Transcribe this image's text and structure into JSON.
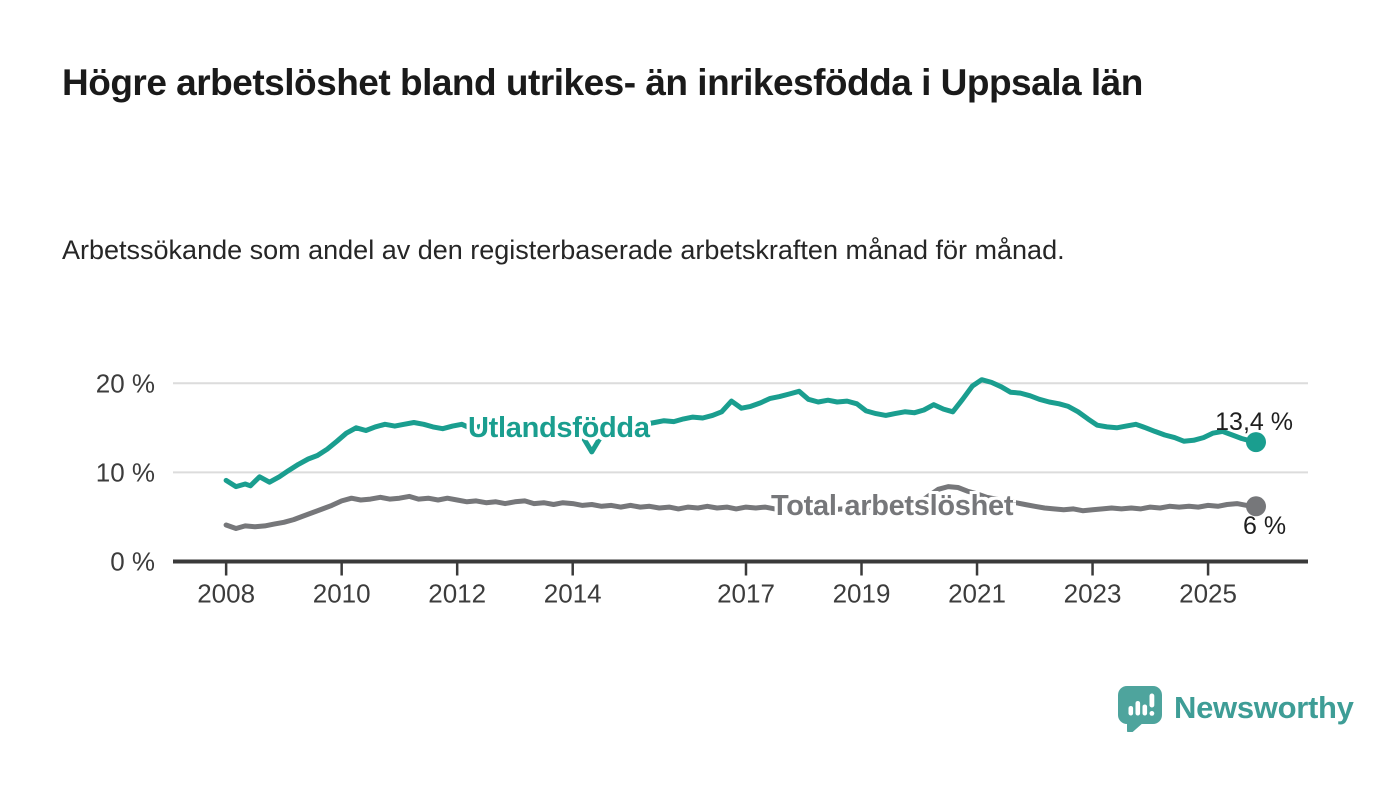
{
  "header": {
    "title": "Högre arbetslöshet bland utrikes- än inrikesfödda i Uppsala län",
    "subtitle": "Arbetssökande som andel av den registerbaserade arbetskraften månad för månad."
  },
  "chart_data": {
    "type": "line",
    "unit": "%",
    "xlim": [
      2007.08,
      2026.73
    ],
    "ylim": [
      0,
      22.5
    ],
    "grid": "horizontal-only",
    "grid_color": "#dcdcdc",
    "axis_color": "#3a3a3a",
    "axis_text_color": "#3c3c3c",
    "x_ticks": [
      {
        "value": 2008,
        "label": "2008"
      },
      {
        "value": 2010,
        "label": "2010"
      },
      {
        "value": 2012,
        "label": "2012"
      },
      {
        "value": 2014,
        "label": "2014"
      },
      {
        "value": 2017,
        "label": "2017"
      },
      {
        "value": 2019,
        "label": "2019"
      },
      {
        "value": 2021,
        "label": "2021"
      },
      {
        "value": 2023,
        "label": "2023"
      },
      {
        "value": 2025,
        "label": "2025"
      }
    ],
    "y_ticks": [
      {
        "value": 0,
        "label": "0 %"
      },
      {
        "value": 10,
        "label": "10 %"
      },
      {
        "value": 20,
        "label": "20 %"
      }
    ],
    "series": [
      {
        "name": "Utlandsfödda",
        "color": "#1a9e8f",
        "end_label": "13,4 %",
        "end_value": 13.4,
        "points": [
          [
            2008.0,
            9.1
          ],
          [
            2008.17,
            8.4
          ],
          [
            2008.33,
            8.7
          ],
          [
            2008.42,
            8.5
          ],
          [
            2008.58,
            9.5
          ],
          [
            2008.75,
            8.9
          ],
          [
            2008.92,
            9.5
          ],
          [
            2009.08,
            10.2
          ],
          [
            2009.25,
            10.9
          ],
          [
            2009.42,
            11.5
          ],
          [
            2009.58,
            11.9
          ],
          [
            2009.75,
            12.6
          ],
          [
            2009.92,
            13.5
          ],
          [
            2010.08,
            14.4
          ],
          [
            2010.25,
            15.0
          ],
          [
            2010.42,
            14.7
          ],
          [
            2010.58,
            15.1
          ],
          [
            2010.75,
            15.4
          ],
          [
            2010.92,
            15.2
          ],
          [
            2011.08,
            15.4
          ],
          [
            2011.25,
            15.6
          ],
          [
            2011.42,
            15.4
          ],
          [
            2011.58,
            15.1
          ],
          [
            2011.75,
            14.9
          ],
          [
            2011.92,
            15.2
          ],
          [
            2012.08,
            15.4
          ],
          [
            2012.25,
            14.9
          ],
          [
            2012.42,
            15.2
          ],
          [
            2012.58,
            15.4
          ],
          [
            2012.75,
            15.0
          ],
          [
            2012.92,
            15.2
          ],
          [
            2013.08,
            15.5
          ],
          [
            2013.25,
            15.3
          ],
          [
            2013.42,
            15.1
          ],
          [
            2013.58,
            15.4
          ],
          [
            2013.75,
            15.5
          ],
          [
            2013.92,
            15.2
          ],
          [
            2014.08,
            15.0
          ],
          [
            2014.33,
            12.3
          ],
          [
            2014.58,
            15.0
          ],
          [
            2014.75,
            15.4
          ],
          [
            2014.92,
            15.3
          ],
          [
            2015.08,
            15.6
          ],
          [
            2015.25,
            15.4
          ],
          [
            2015.42,
            15.6
          ],
          [
            2015.58,
            15.8
          ],
          [
            2015.75,
            15.7
          ],
          [
            2015.92,
            16.0
          ],
          [
            2016.08,
            16.2
          ],
          [
            2016.25,
            16.1
          ],
          [
            2016.42,
            16.4
          ],
          [
            2016.58,
            16.8
          ],
          [
            2016.75,
            18.0
          ],
          [
            2016.92,
            17.2
          ],
          [
            2017.08,
            17.4
          ],
          [
            2017.25,
            17.8
          ],
          [
            2017.42,
            18.3
          ],
          [
            2017.58,
            18.5
          ],
          [
            2017.75,
            18.8
          ],
          [
            2017.92,
            19.1
          ],
          [
            2018.08,
            18.2
          ],
          [
            2018.25,
            17.9
          ],
          [
            2018.42,
            18.1
          ],
          [
            2018.58,
            17.9
          ],
          [
            2018.75,
            18.0
          ],
          [
            2018.92,
            17.7
          ],
          [
            2019.08,
            16.9
          ],
          [
            2019.25,
            16.6
          ],
          [
            2019.42,
            16.4
          ],
          [
            2019.58,
            16.6
          ],
          [
            2019.75,
            16.8
          ],
          [
            2019.92,
            16.7
          ],
          [
            2020.08,
            17.0
          ],
          [
            2020.25,
            17.6
          ],
          [
            2020.42,
            17.1
          ],
          [
            2020.58,
            16.8
          ],
          [
            2020.75,
            18.2
          ],
          [
            2020.92,
            19.7
          ],
          [
            2021.08,
            20.4
          ],
          [
            2021.25,
            20.1
          ],
          [
            2021.42,
            19.6
          ],
          [
            2021.58,
            19.0
          ],
          [
            2021.75,
            18.9
          ],
          [
            2021.92,
            18.6
          ],
          [
            2022.08,
            18.2
          ],
          [
            2022.25,
            17.9
          ],
          [
            2022.42,
            17.7
          ],
          [
            2022.58,
            17.4
          ],
          [
            2022.75,
            16.8
          ],
          [
            2022.92,
            16.0
          ],
          [
            2023.08,
            15.3
          ],
          [
            2023.25,
            15.1
          ],
          [
            2023.42,
            15.0
          ],
          [
            2023.58,
            15.2
          ],
          [
            2023.75,
            15.4
          ],
          [
            2023.92,
            15.0
          ],
          [
            2024.08,
            14.6
          ],
          [
            2024.25,
            14.2
          ],
          [
            2024.42,
            13.9
          ],
          [
            2024.58,
            13.5
          ],
          [
            2024.75,
            13.6
          ],
          [
            2024.92,
            13.9
          ],
          [
            2025.08,
            14.4
          ],
          [
            2025.25,
            14.6
          ],
          [
            2025.42,
            14.2
          ],
          [
            2025.58,
            13.8
          ],
          [
            2025.75,
            13.5
          ],
          [
            2025.83,
            13.4
          ]
        ]
      },
      {
        "name": "Total arbetslöshet",
        "color": "#76777a",
        "end_label": "6 %",
        "end_value": 6.2,
        "points": [
          [
            2008.0,
            4.1
          ],
          [
            2008.17,
            3.7
          ],
          [
            2008.33,
            4.0
          ],
          [
            2008.5,
            3.9
          ],
          [
            2008.67,
            4.0
          ],
          [
            2008.83,
            4.2
          ],
          [
            2009.0,
            4.4
          ],
          [
            2009.17,
            4.7
          ],
          [
            2009.33,
            5.1
          ],
          [
            2009.5,
            5.5
          ],
          [
            2009.67,
            5.9
          ],
          [
            2009.83,
            6.3
          ],
          [
            2010.0,
            6.8
          ],
          [
            2010.17,
            7.1
          ],
          [
            2010.33,
            6.9
          ],
          [
            2010.5,
            7.0
          ],
          [
            2010.67,
            7.2
          ],
          [
            2010.83,
            7.0
          ],
          [
            2011.0,
            7.1
          ],
          [
            2011.17,
            7.3
          ],
          [
            2011.33,
            7.0
          ],
          [
            2011.5,
            7.1
          ],
          [
            2011.67,
            6.9
          ],
          [
            2011.83,
            7.1
          ],
          [
            2012.0,
            6.9
          ],
          [
            2012.17,
            6.7
          ],
          [
            2012.33,
            6.8
          ],
          [
            2012.5,
            6.6
          ],
          [
            2012.67,
            6.7
          ],
          [
            2012.83,
            6.5
          ],
          [
            2013.0,
            6.7
          ],
          [
            2013.17,
            6.8
          ],
          [
            2013.33,
            6.5
          ],
          [
            2013.5,
            6.6
          ],
          [
            2013.67,
            6.4
          ],
          [
            2013.83,
            6.6
          ],
          [
            2014.0,
            6.5
          ],
          [
            2014.17,
            6.3
          ],
          [
            2014.33,
            6.4
          ],
          [
            2014.5,
            6.2
          ],
          [
            2014.67,
            6.3
          ],
          [
            2014.83,
            6.1
          ],
          [
            2015.0,
            6.3
          ],
          [
            2015.17,
            6.1
          ],
          [
            2015.33,
            6.2
          ],
          [
            2015.5,
            6.0
          ],
          [
            2015.67,
            6.1
          ],
          [
            2015.83,
            5.9
          ],
          [
            2016.0,
            6.1
          ],
          [
            2016.17,
            6.0
          ],
          [
            2016.33,
            6.2
          ],
          [
            2016.5,
            6.0
          ],
          [
            2016.67,
            6.1
          ],
          [
            2016.83,
            5.9
          ],
          [
            2017.0,
            6.1
          ],
          [
            2017.17,
            6.0
          ],
          [
            2017.33,
            6.1
          ],
          [
            2017.5,
            5.9
          ],
          [
            2017.67,
            6.0
          ],
          [
            2017.83,
            5.8
          ],
          [
            2018.0,
            6.0
          ],
          [
            2018.17,
            5.9
          ],
          [
            2018.33,
            6.0
          ],
          [
            2018.5,
            5.8
          ],
          [
            2018.67,
            5.9
          ],
          [
            2018.83,
            5.8
          ],
          [
            2019.0,
            6.0
          ],
          [
            2019.17,
            6.1
          ],
          [
            2019.33,
            6.0
          ],
          [
            2019.5,
            6.1
          ],
          [
            2019.67,
            6.2
          ],
          [
            2019.83,
            6.3
          ],
          [
            2020.0,
            6.6
          ],
          [
            2020.17,
            7.4
          ],
          [
            2020.33,
            8.1
          ],
          [
            2020.5,
            8.4
          ],
          [
            2020.67,
            8.3
          ],
          [
            2020.83,
            7.9
          ],
          [
            2021.0,
            7.6
          ],
          [
            2021.17,
            7.2
          ],
          [
            2021.33,
            7.0
          ],
          [
            2021.5,
            6.8
          ],
          [
            2021.67,
            6.6
          ],
          [
            2021.83,
            6.4
          ],
          [
            2022.0,
            6.2
          ],
          [
            2022.17,
            6.0
          ],
          [
            2022.33,
            5.9
          ],
          [
            2022.5,
            5.8
          ],
          [
            2022.67,
            5.9
          ],
          [
            2022.83,
            5.7
          ],
          [
            2023.0,
            5.8
          ],
          [
            2023.17,
            5.9
          ],
          [
            2023.33,
            6.0
          ],
          [
            2023.5,
            5.9
          ],
          [
            2023.67,
            6.0
          ],
          [
            2023.83,
            5.9
          ],
          [
            2024.0,
            6.1
          ],
          [
            2024.17,
            6.0
          ],
          [
            2024.33,
            6.2
          ],
          [
            2024.5,
            6.1
          ],
          [
            2024.67,
            6.2
          ],
          [
            2024.83,
            6.1
          ],
          [
            2025.0,
            6.3
          ],
          [
            2025.17,
            6.2
          ],
          [
            2025.33,
            6.4
          ],
          [
            2025.5,
            6.5
          ],
          [
            2025.67,
            6.3
          ],
          [
            2025.83,
            6.2
          ]
        ]
      }
    ]
  },
  "branding": {
    "logo_text": "Newsworthy",
    "logo_text_color": "#3e9d96",
    "logo_icon_color": "#4ea49d"
  }
}
